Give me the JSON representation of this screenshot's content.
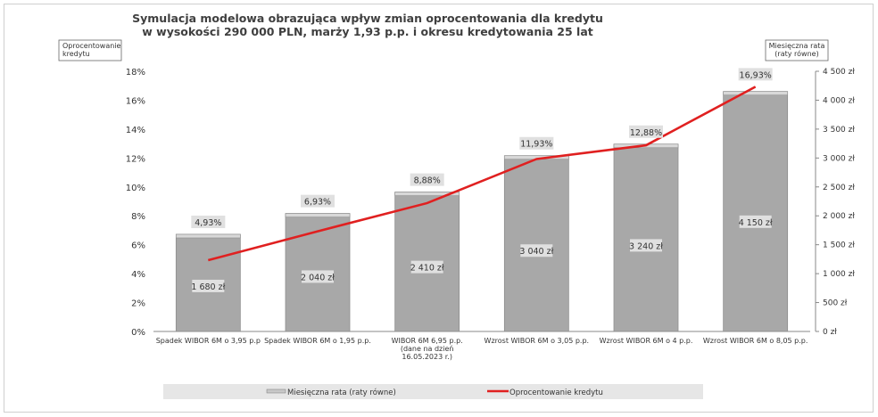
{
  "chart_data": {
    "type": "bar",
    "title_lines": [
      "Symulacja modelowa obrazująca wpływ zmian oprocentowania dla kredytu",
      "w wysokości 290 000 PLN, marży 1,93 p.p. i okresu kredytowania 25 lat"
    ],
    "left_axis_title_lines": [
      "Oprocentowanie",
      "kredytu"
    ],
    "right_axis_title_lines": [
      "Miesięczna rata",
      "(raty równe)"
    ],
    "categories": [
      [
        "Spadek WIBOR 6M o 3,95 p.p"
      ],
      [
        "Spadek WIBOR 6M o 1,95 p.p."
      ],
      [
        "WIBOR 6M 6,95 p.p.",
        "(dane na dzień",
        "16.05.2023 r.)"
      ],
      [
        "Wzrost WIBOR 6M o 3,05 p.p."
      ],
      [
        "Wzrost WIBOR 6M o 4 p.p."
      ],
      [
        "Wzrost WIBOR 6M o 8,05 p.p."
      ]
    ],
    "left_ylim": [
      0,
      18
    ],
    "left_ticks": [
      0,
      2,
      4,
      6,
      8,
      10,
      12,
      14,
      16,
      18
    ],
    "left_tick_labels": [
      "0%",
      "2%",
      "4%",
      "6%",
      "8%",
      "10%",
      "12%",
      "14%",
      "16%",
      "18%"
    ],
    "right_ylim": [
      0,
      4500
    ],
    "right_ticks": [
      0,
      500,
      1000,
      1500,
      2000,
      2500,
      3000,
      3500,
      4000,
      4500
    ],
    "right_tick_labels": [
      "0 zł",
      "500 zł",
      "1 000 zł",
      "1 500 zł",
      "2 000 zł",
      "2 500 zł",
      "3 000 zł",
      "3 500 zł",
      "4 000 zł",
      "4 500 zł"
    ],
    "series": [
      {
        "name": "Miesięczna rata (raty równe)",
        "type": "bar",
        "axis": "right",
        "values": [
          1680,
          2040,
          2410,
          3040,
          3240,
          4150
        ],
        "labels": [
          "1 680 zł",
          "2 040 zł",
          "2 410 zł",
          "3 040 zł",
          "3 240 zł",
          "4 150 zł"
        ],
        "color": "#a8a8a8"
      },
      {
        "name": "Oprocentowanie kredytu",
        "type": "line",
        "axis": "left",
        "values": [
          4.93,
          6.93,
          8.88,
          11.93,
          12.88,
          16.93
        ],
        "labels": [
          "4,93%",
          "6,93%",
          "8,88%",
          "11,93%",
          "12,88%",
          "16,93%"
        ],
        "color": "#e02020"
      }
    ],
    "legend_position": "bottom",
    "grid": false
  }
}
